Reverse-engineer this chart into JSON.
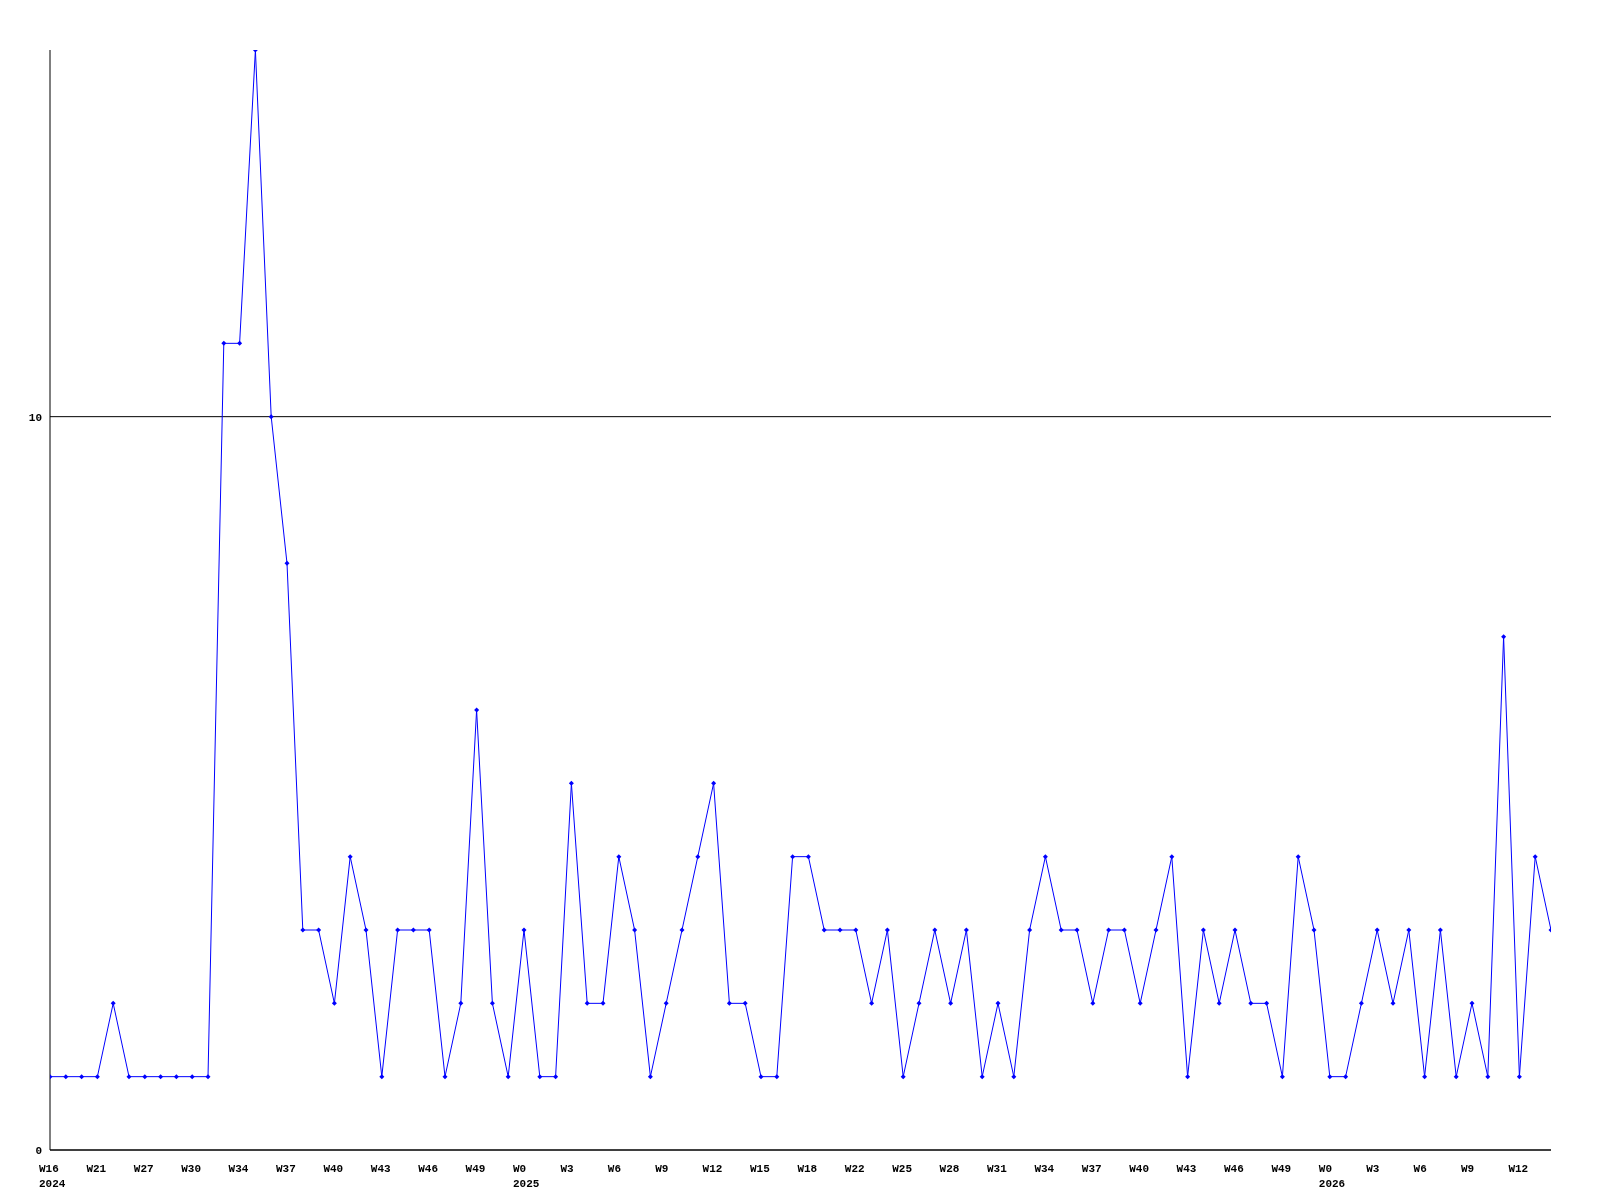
{
  "chart_data": {
    "type": "line",
    "categories": [
      "W16\n2024",
      null,
      null,
      "W21",
      null,
      null,
      "W27",
      null,
      null,
      "W30",
      null,
      null,
      "W34",
      null,
      null,
      "W37",
      null,
      null,
      "W40",
      null,
      null,
      "W43",
      null,
      null,
      "W46",
      null,
      null,
      "W49",
      null,
      null,
      "W0\n2025",
      null,
      null,
      "W3",
      null,
      null,
      "W6",
      null,
      null,
      "W9",
      null,
      null,
      "W12",
      null,
      null,
      "W15",
      null,
      null,
      "W18",
      null,
      null,
      "W22",
      null,
      null,
      "W25",
      null,
      null,
      "W28",
      null,
      null,
      "W31",
      null,
      null,
      "W34",
      null,
      null,
      "W37",
      null,
      null,
      "W40",
      null,
      null,
      "W43",
      null,
      null,
      "W46",
      null,
      null,
      "W49",
      null,
      null,
      "W0\n2026",
      null,
      null,
      "W3",
      null,
      null,
      "W6",
      null,
      null,
      "W9",
      null,
      null,
      "W12",
      null,
      null
    ],
    "series": [
      {
        "color": "#0000ff",
        "values": [
          1,
          1,
          1,
          1,
          2,
          1,
          1,
          1,
          1,
          1,
          1,
          11,
          11,
          15,
          10,
          8,
          3,
          3,
          2,
          4,
          3,
          1,
          3,
          3,
          3,
          1,
          2,
          6,
          2,
          1,
          3,
          1,
          1,
          5,
          2,
          2,
          4,
          3,
          1,
          2,
          3,
          4,
          5,
          2,
          2,
          1,
          1,
          4,
          4,
          3,
          3,
          3,
          2,
          3,
          1,
          2,
          3,
          2,
          3,
          1,
          2,
          1,
          3,
          4,
          3,
          3,
          2,
          3,
          3,
          2,
          3,
          4,
          1,
          3,
          2,
          3,
          2,
          2,
          1,
          4,
          3,
          1,
          1,
          2,
          3,
          2,
          3,
          1,
          3,
          1,
          2,
          1,
          7,
          1,
          4,
          3
        ]
      }
    ],
    "ylim": [
      0,
      15
    ],
    "yticks": [
      0,
      10
    ],
    "grid": "y",
    "marker": "diamond",
    "line_style": "solid"
  }
}
